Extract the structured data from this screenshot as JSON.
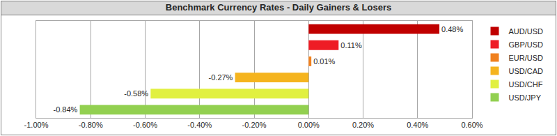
{
  "chart_data": {
    "type": "bar",
    "title": "Benchmark Currency Rates - Daily Gainers & Losers",
    "orientation": "horizontal",
    "categories": [
      "AUD/USD",
      "GBP/USD",
      "EUR/USD",
      "USD/CAD",
      "USD/CHF",
      "USD/JPY"
    ],
    "values": [
      0.48,
      0.11,
      0.01,
      -0.27,
      -0.58,
      -0.84
    ],
    "value_labels": [
      "0.48%",
      "0.11%",
      "0.01%",
      "-0.27%",
      "-0.58%",
      "-0.84%"
    ],
    "colors": [
      "#c00000",
      "#ee1c25",
      "#f0801e",
      "#f5b41e",
      "#e1f040",
      "#92d050"
    ],
    "xlim": [
      -1.0,
      0.6
    ],
    "xticks": [
      {
        "value": -1.0,
        "label": "-1.00%"
      },
      {
        "value": -0.8,
        "label": "-0.80%"
      },
      {
        "value": -0.6,
        "label": "-0.60%"
      },
      {
        "value": -0.4,
        "label": "-0.40%"
      },
      {
        "value": -0.2,
        "label": "-0.20%"
      },
      {
        "value": 0.0,
        "label": "0.00%"
      },
      {
        "value": 0.2,
        "label": "0.20%"
      },
      {
        "value": 0.4,
        "label": "0.40%"
      },
      {
        "value": 0.6,
        "label": "0.60%"
      }
    ],
    "grid": true,
    "legend": "right",
    "data_labels": true,
    "tick_labels": "x"
  }
}
